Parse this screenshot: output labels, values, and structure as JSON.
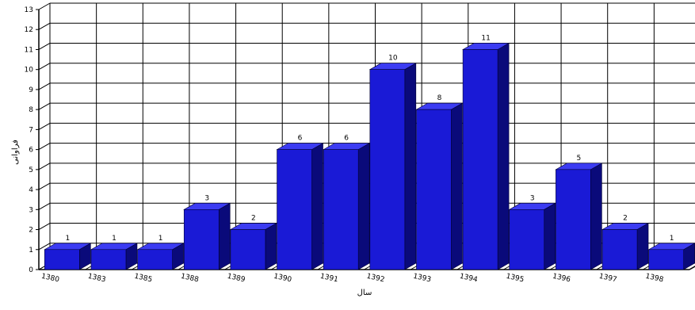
{
  "chart_data": {
    "type": "bar",
    "title": "",
    "xlabel": "سال",
    "ylabel": "فراوانی",
    "categories": [
      "1380",
      "1383",
      "1385",
      "1388",
      "1389",
      "1390",
      "1391",
      "1392",
      "1393",
      "1394",
      "1395",
      "1396",
      "1397",
      "1398"
    ],
    "values": [
      1,
      1,
      1,
      3,
      2,
      6,
      6,
      10,
      8,
      11,
      3,
      5,
      2,
      1
    ],
    "ylim": [
      0,
      13
    ],
    "yticks": [
      0,
      1,
      2,
      3,
      4,
      5,
      6,
      7,
      8,
      9,
      10,
      11,
      12,
      13
    ],
    "grid": true,
    "data_labels": true,
    "colors": {
      "bar_front": "#1a1ad6",
      "bar_side": "#0a0a7a",
      "bar_top": "#3c3cf2",
      "grid": "#000000"
    }
  }
}
